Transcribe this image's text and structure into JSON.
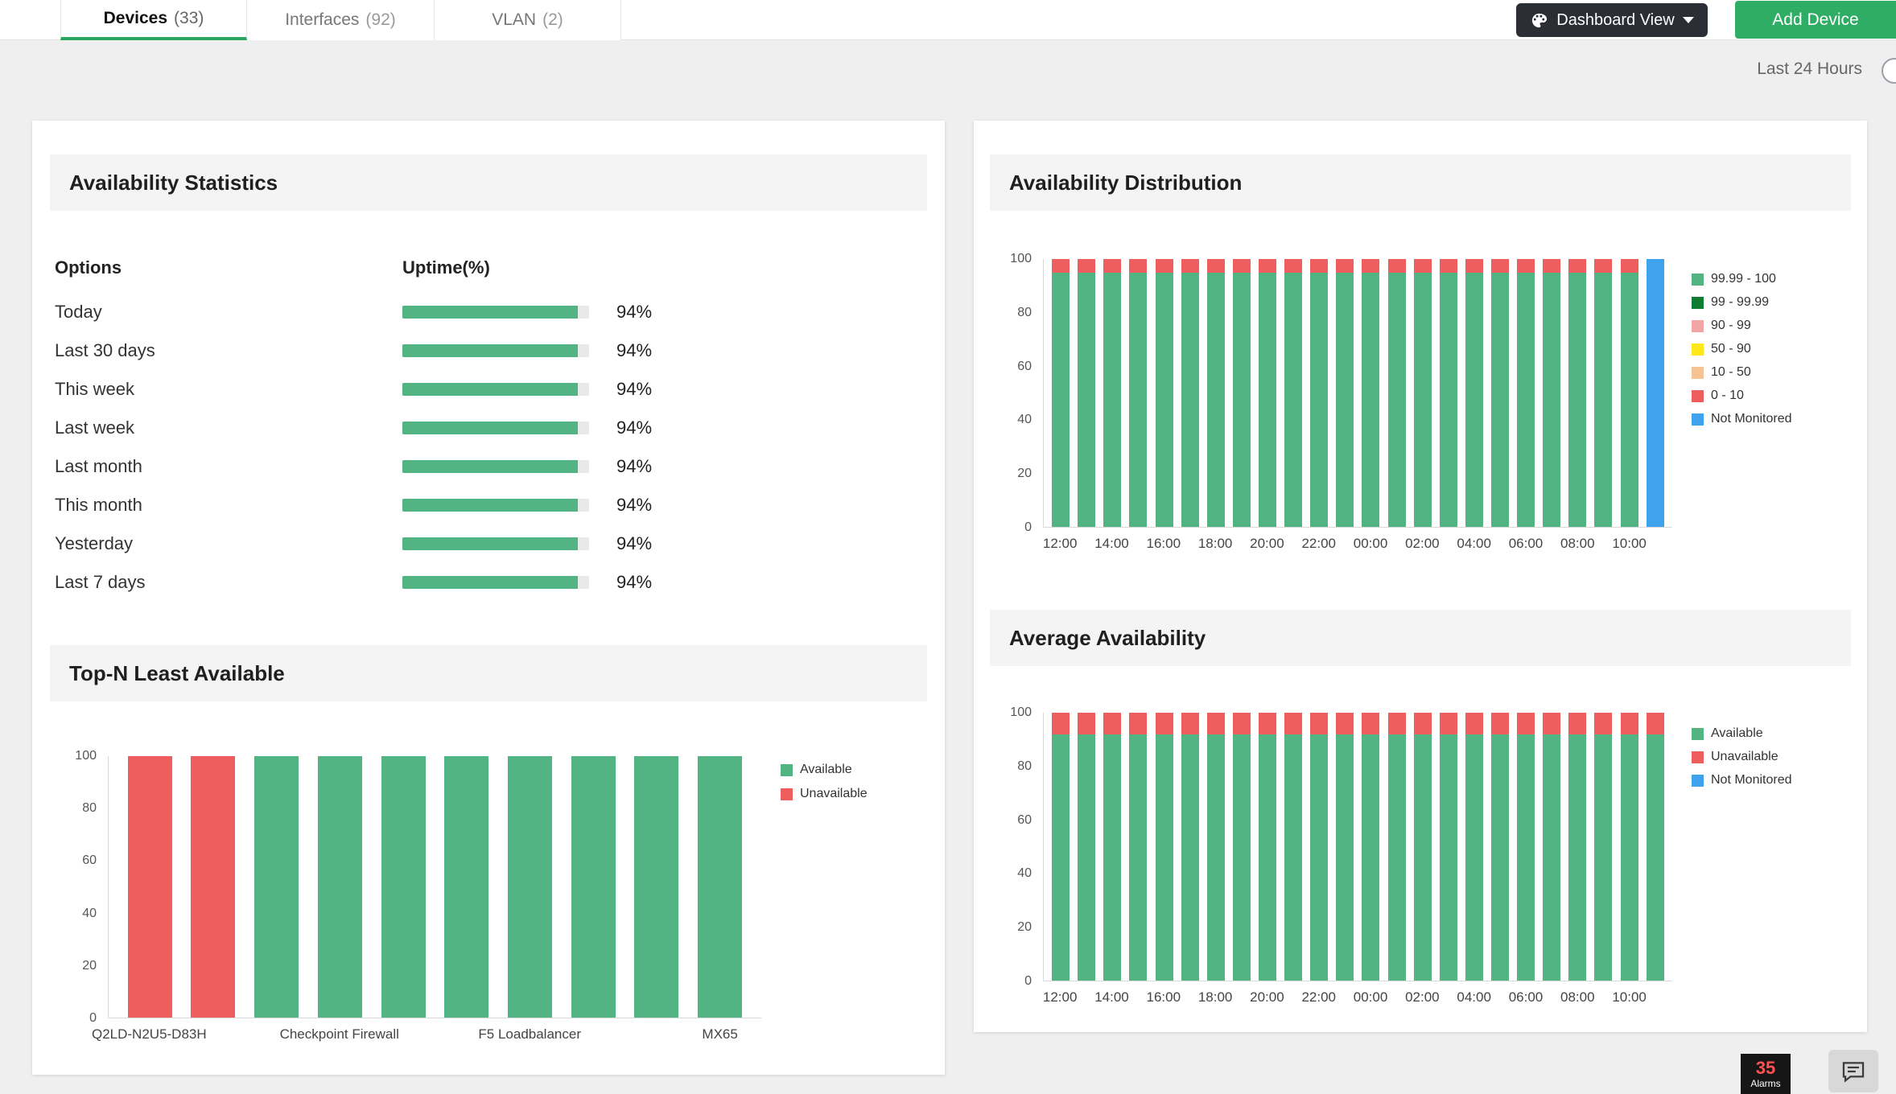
{
  "header": {
    "tabs": [
      {
        "label": "Devices",
        "count": "(33)"
      },
      {
        "label": "Interfaces",
        "count": "(92)"
      },
      {
        "label": "VLAN",
        "count": "(2)"
      }
    ],
    "dashboard_view_label": "Dashboard View",
    "add_device_label": "Add Device",
    "time_range": "Last 24 Hours"
  },
  "panels": {
    "availability_statistics": {
      "title": "Availability Statistics",
      "columns": {
        "options": "Options",
        "uptime": "Uptime(%)"
      },
      "rows": [
        {
          "label": "Today",
          "value": 94,
          "display": "94%"
        },
        {
          "label": "Last 30 days",
          "value": 94,
          "display": "94%"
        },
        {
          "label": "This week",
          "value": 94,
          "display": "94%"
        },
        {
          "label": "Last week",
          "value": 94,
          "display": "94%"
        },
        {
          "label": "Last month",
          "value": 94,
          "display": "94%"
        },
        {
          "label": "This month",
          "value": 94,
          "display": "94%"
        },
        {
          "label": "Yesterday",
          "value": 94,
          "display": "94%"
        },
        {
          "label": "Last 7 days",
          "value": 94,
          "display": "94%"
        }
      ]
    },
    "top_n": {
      "title": "Top-N Least Available"
    },
    "distribution": {
      "title": "Availability Distribution"
    },
    "average": {
      "title": "Average Availability"
    }
  },
  "footer": {
    "alarm_count": "35",
    "alarm_label": "Alarms"
  },
  "colors": {
    "accent_green": "#2aa761",
    "available_green": "#52b483",
    "unavailable_red": "#ef5e5e",
    "not_monitored_blue": "#3ea2ec"
  },
  "chart_data": [
    {
      "id": "top_n",
      "type": "bar",
      "title": "Top-N Least Available",
      "categories": [
        "Q2LD-N2U5-D83H",
        "",
        "",
        "Checkpoint Firewall",
        "",
        "",
        "F5 Loadbalancer",
        "",
        "",
        "MX65"
      ],
      "series": [
        {
          "name": "Available",
          "color": "#52b483",
          "values": [
            0,
            0,
            100,
            100,
            100,
            100,
            100,
            100,
            100,
            100
          ]
        },
        {
          "name": "Unavailable",
          "color": "#ef5e5e",
          "values": [
            100,
            100,
            0,
            0,
            0,
            0,
            0,
            0,
            0,
            0
          ]
        }
      ],
      "ylim": [
        0,
        100
      ],
      "yticks": [
        0,
        20,
        40,
        60,
        80,
        100
      ],
      "grid": false,
      "legend_position": "right",
      "legend": [
        {
          "label": "Available",
          "color": "#52b483"
        },
        {
          "label": "Unavailable",
          "color": "#ef5e5e"
        }
      ]
    },
    {
      "id": "distribution",
      "type": "stacked_bar",
      "title": "Availability Distribution",
      "categories": [
        "12:00",
        "",
        "14:00",
        "",
        "16:00",
        "",
        "18:00",
        "",
        "20:00",
        "",
        "22:00",
        "",
        "00:00",
        "",
        "02:00",
        "",
        "04:00",
        "",
        "06:00",
        "",
        "08:00",
        "",
        "10:00",
        ""
      ],
      "series": [
        {
          "name": "99.99 - 100",
          "color": "#52b483",
          "values": [
            95,
            95,
            95,
            95,
            95,
            95,
            95,
            95,
            95,
            95,
            95,
            95,
            95,
            95,
            95,
            95,
            95,
            95,
            95,
            95,
            95,
            95,
            95,
            0
          ]
        },
        {
          "name": "0 - 10",
          "color": "#ef5e5e",
          "values": [
            5,
            5,
            5,
            5,
            5,
            5,
            5,
            5,
            5,
            5,
            5,
            5,
            5,
            5,
            5,
            5,
            5,
            5,
            5,
            5,
            5,
            5,
            5,
            0
          ]
        },
        {
          "name": "Not Monitored",
          "color": "#3ea2ec",
          "values": [
            0,
            0,
            0,
            0,
            0,
            0,
            0,
            0,
            0,
            0,
            0,
            0,
            0,
            0,
            0,
            0,
            0,
            0,
            0,
            0,
            0,
            0,
            0,
            100
          ]
        }
      ],
      "ylim": [
        0,
        100
      ],
      "yticks": [
        0,
        20,
        40,
        60,
        80,
        100
      ],
      "grid": false,
      "legend_position": "right",
      "legend": [
        {
          "label": "99.99 - 100",
          "color": "#52b483"
        },
        {
          "label": "99 - 99.99",
          "color": "#0e7d32"
        },
        {
          "label": "90 - 99",
          "color": "#f2a5a5"
        },
        {
          "label": "50 - 90",
          "color": "#ffe81a"
        },
        {
          "label": "10 - 50",
          "color": "#f6c494"
        },
        {
          "label": "0 - 10",
          "color": "#ef5e5e"
        },
        {
          "label": "Not Monitored",
          "color": "#3ea2ec"
        }
      ]
    },
    {
      "id": "average",
      "type": "stacked_bar",
      "title": "Average Availability",
      "categories": [
        "12:00",
        "",
        "14:00",
        "",
        "16:00",
        "",
        "18:00",
        "",
        "20:00",
        "",
        "22:00",
        "",
        "00:00",
        "",
        "02:00",
        "",
        "04:00",
        "",
        "06:00",
        "",
        "08:00",
        "",
        "10:00",
        ""
      ],
      "series": [
        {
          "name": "Available",
          "color": "#52b483",
          "values": [
            92,
            92,
            92,
            92,
            92,
            92,
            92,
            92,
            92,
            92,
            92,
            92,
            92,
            92,
            92,
            92,
            92,
            92,
            92,
            92,
            92,
            92,
            92,
            92
          ]
        },
        {
          "name": "Unavailable",
          "color": "#ef5e5e",
          "values": [
            8,
            8,
            8,
            8,
            8,
            8,
            8,
            8,
            8,
            8,
            8,
            8,
            8,
            8,
            8,
            8,
            8,
            8,
            8,
            8,
            8,
            8,
            8,
            8
          ]
        }
      ],
      "ylim": [
        0,
        100
      ],
      "yticks": [
        0,
        20,
        40,
        60,
        80,
        100
      ],
      "grid": false,
      "legend_position": "right",
      "legend": [
        {
          "label": "Available",
          "color": "#52b483"
        },
        {
          "label": "Unavailable",
          "color": "#ef5e5e"
        },
        {
          "label": "Not Monitored",
          "color": "#3ea2ec"
        }
      ]
    }
  ]
}
